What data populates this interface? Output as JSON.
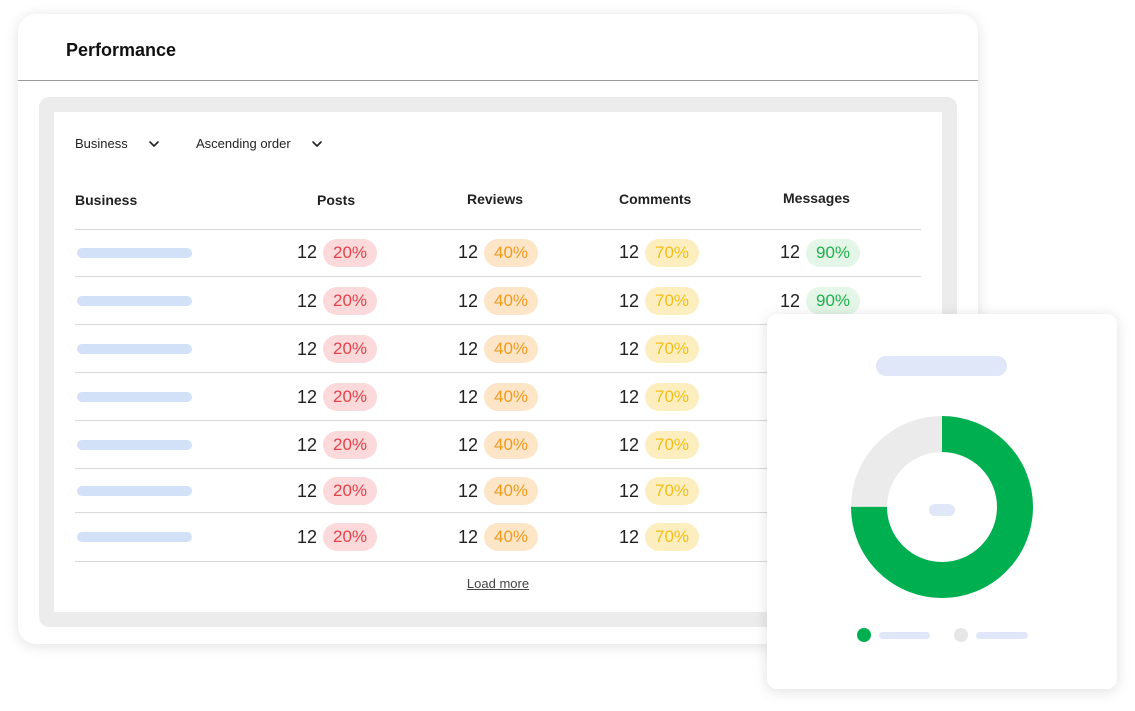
{
  "header": {
    "title": "Performance"
  },
  "filters": [
    {
      "label": "Business"
    },
    {
      "label": "Ascending order"
    }
  ],
  "table": {
    "columns": [
      "Business",
      "Posts",
      "Reviews",
      "Comments",
      "Messages"
    ],
    "rows": [
      {
        "posts": {
          "count": "12",
          "pct": "20%"
        },
        "reviews": {
          "count": "12",
          "pct": "40%"
        },
        "comments": {
          "count": "12",
          "pct": "70%"
        },
        "messages": {
          "count": "12",
          "pct": "90%"
        }
      },
      {
        "posts": {
          "count": "12",
          "pct": "20%"
        },
        "reviews": {
          "count": "12",
          "pct": "40%"
        },
        "comments": {
          "count": "12",
          "pct": "70%"
        },
        "messages": {
          "count": "12",
          "pct": "90%"
        }
      },
      {
        "posts": {
          "count": "12",
          "pct": "20%"
        },
        "reviews": {
          "count": "12",
          "pct": "40%"
        },
        "comments": {
          "count": "12",
          "pct": "70%"
        }
      },
      {
        "posts": {
          "count": "12",
          "pct": "20%"
        },
        "reviews": {
          "count": "12",
          "pct": "40%"
        },
        "comments": {
          "count": "12",
          "pct": "70%"
        }
      },
      {
        "posts": {
          "count": "12",
          "pct": "20%"
        },
        "reviews": {
          "count": "12",
          "pct": "40%"
        },
        "comments": {
          "count": "12",
          "pct": "70%"
        }
      },
      {
        "posts": {
          "count": "12",
          "pct": "20%"
        },
        "reviews": {
          "count": "12",
          "pct": "40%"
        },
        "comments": {
          "count": "12",
          "pct": "70%"
        }
      },
      {
        "posts": {
          "count": "12",
          "pct": "20%"
        },
        "reviews": {
          "count": "12",
          "pct": "40%"
        },
        "comments": {
          "count": "12",
          "pct": "70%"
        }
      }
    ],
    "load_more": "Load more"
  },
  "pill_colors": {
    "posts": {
      "bg": "#fcd9da",
      "fg": "#e0434a"
    },
    "reviews": {
      "bg": "#fde6c8",
      "fg": "#ef9a1f"
    },
    "comments": {
      "bg": "#fdeec0",
      "fg": "#f2be19"
    },
    "messages": {
      "bg": "#e3f6e7",
      "fg": "#20b04b"
    }
  },
  "donut": {
    "share": 0.75,
    "colors": {
      "primary": "#00b050",
      "rest": "#ebebeb"
    }
  }
}
